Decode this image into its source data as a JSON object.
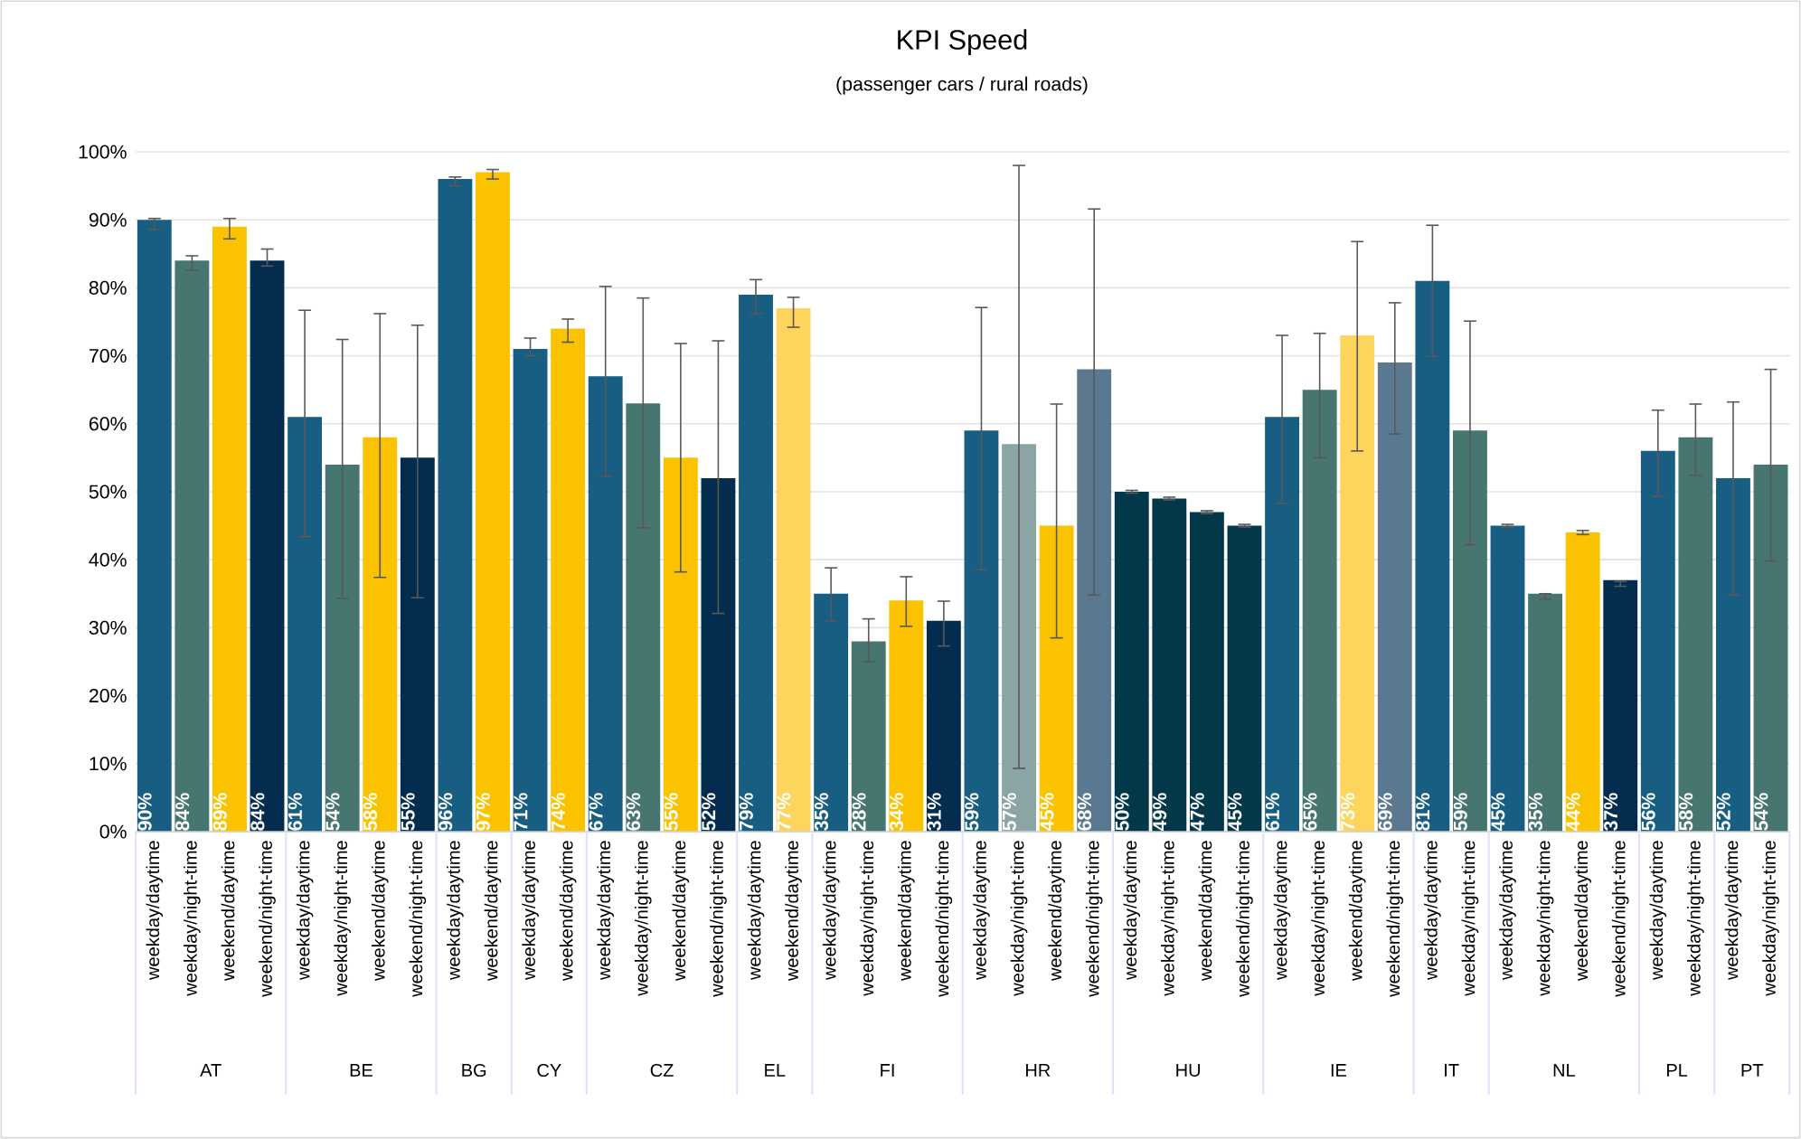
{
  "chart_data": {
    "type": "bar",
    "title": "KPI Speed",
    "subtitle": "(passenger cars / rural roads)",
    "categories": [
      "weekday/daytime",
      "weekday/night-time",
      "weekend/daytime",
      "weekend/night-time",
      "weekday/daytime",
      "weekday/night-time",
      "weekend/daytime",
      "weekend/night-time",
      "weekday/daytime",
      "weekend/daytime",
      "weekday/daytime",
      "weekend/daytime",
      "weekday/daytime",
      "weekday/night-time",
      "weekend/daytime",
      "weekend/night-time",
      "weekday/daytime",
      "weekend/daytime",
      "weekday/daytime",
      "weekday/night-time",
      "weekend/daytime",
      "weekend/night-time",
      "weekday/daytime",
      "weekday/night-time",
      "weekend/daytime",
      "weekend/night-time",
      "weekday/daytime",
      "weekday/night-time",
      "weekend/daytime",
      "weekend/night-time",
      "weekday/daytime",
      "weekday/night-time",
      "weekend/daytime",
      "weekend/night-time",
      "weekday/daytime",
      "weekday/night-time",
      "weekday/daytime",
      "weekday/night-time",
      "weekend/daytime",
      "weekend/night-time",
      "weekday/daytime",
      "weekday/night-time",
      "weekday/daytime",
      "weekday/night-time"
    ],
    "values": [
      90,
      84,
      89,
      84,
      61,
      54,
      58,
      55,
      96,
      97,
      71,
      74,
      67,
      63,
      55,
      52,
      79,
      77,
      35,
      28,
      34,
      31,
      59,
      57,
      45,
      68,
      50,
      49,
      47,
      45,
      61,
      65,
      73,
      69,
      81,
      59,
      45,
      35,
      44,
      37,
      56,
      58,
      52,
      54
    ],
    "value_labels": [
      "90%",
      "84%",
      "89%",
      "84%",
      "61%",
      "54%",
      "58%",
      "55%",
      "96%",
      "97%",
      "71%",
      "74%",
      "67%",
      "63%",
      "55%",
      "52%",
      "79%",
      "77%",
      "35%",
      "28%",
      "34%",
      "31%",
      "59%",
      "57%",
      "45%",
      "68%",
      "50%",
      "49%",
      "47%",
      "45%",
      "61%",
      "65%",
      "73%",
      "69%",
      "81%",
      "59%",
      "45%",
      "35%",
      "44%",
      "37%",
      "56%",
      "58%",
      "52%",
      "54%"
    ],
    "colors": [
      "#175e82",
      "#47756f",
      "#fbc200",
      "#032c4e",
      "#175e82",
      "#47756f",
      "#fbc200",
      "#032c4e",
      "#175e82",
      "#fbc200",
      "#175e82",
      "#fbc200",
      "#175e82",
      "#47756f",
      "#fbc200",
      "#032c4e",
      "#175e82",
      "#fdd55d",
      "#175e82",
      "#47756f",
      "#fbc200",
      "#032c4e",
      "#175e82",
      "#8aa5a4",
      "#fbc200",
      "#5b7891",
      "#03384a",
      "#03384a",
      "#03384a",
      "#03384a",
      "#175e82",
      "#47756f",
      "#fdd55d",
      "#5b7891",
      "#175e82",
      "#47756f",
      "#175e82",
      "#47756f",
      "#fbc200",
      "#032c4e",
      "#175e82",
      "#47756f",
      "#175e82",
      "#47756f"
    ],
    "errors": [
      [
        88.6,
        90.2
      ],
      [
        82.6,
        84.7
      ],
      [
        87.2,
        90.2
      ],
      [
        83.2,
        85.7
      ],
      [
        43.4,
        76.7
      ],
      [
        34.3,
        72.4
      ],
      [
        37.4,
        76.2
      ],
      [
        34.4,
        74.5
      ],
      [
        95.0,
        96.3
      ],
      [
        96.0,
        97.4
      ],
      [
        70.0,
        72.6
      ],
      [
        72.0,
        75.4
      ],
      [
        52.3,
        80.2
      ],
      [
        44.7,
        78.5
      ],
      [
        38.2,
        71.8
      ],
      [
        32.1,
        72.2
      ],
      [
        76.2,
        81.2
      ],
      [
        74.2,
        78.6
      ],
      [
        31.0,
        38.8
      ],
      [
        25.0,
        31.3
      ],
      [
        30.2,
        37.5
      ],
      [
        27.3,
        33.9
      ],
      [
        38.5,
        77.1
      ],
      [
        9.3,
        98.0
      ],
      [
        28.5,
        62.9
      ],
      [
        34.8,
        91.6
      ],
      0.2,
      0.2,
      0.2,
      0.2,
      [
        48.3,
        73.0
      ],
      [
        55.0,
        73.3
      ],
      [
        56.0,
        86.8
      ],
      [
        58.5,
        77.8
      ],
      [
        69.9,
        89.2
      ],
      [
        42.2,
        75.1
      ],
      0.2,
      [
        34.2,
        35.0
      ],
      0.3,
      [
        36.1,
        36.8
      ],
      [
        49.3,
        62.0
      ],
      [
        52.4,
        62.9
      ],
      [
        34.8,
        63.2
      ],
      [
        39.8,
        68.0
      ]
    ],
    "annotations": [
      "AT",
      "BE",
      "BG",
      "CY",
      "CZ",
      "EL",
      "FI",
      "HR",
      "HU",
      "IE",
      "IT",
      "NL",
      "PL",
      "PT"
    ],
    "ylim": [
      0,
      100
    ],
    "yticks": [
      {
        "value": 0,
        "label": "0%"
      },
      {
        "value": 10,
        "label": "10%"
      },
      {
        "value": 20,
        "label": "20%"
      },
      {
        "value": 30,
        "label": "30%"
      },
      {
        "value": 40,
        "label": "40%"
      },
      {
        "value": 50,
        "label": "50%"
      },
      {
        "value": 60,
        "label": "60%"
      },
      {
        "value": 70,
        "label": "70%"
      },
      {
        "value": 80,
        "label": "80%"
      },
      {
        "value": 90,
        "label": "90%"
      },
      {
        "value": 100,
        "label": "100%"
      }
    ],
    "grid": "y"
  }
}
